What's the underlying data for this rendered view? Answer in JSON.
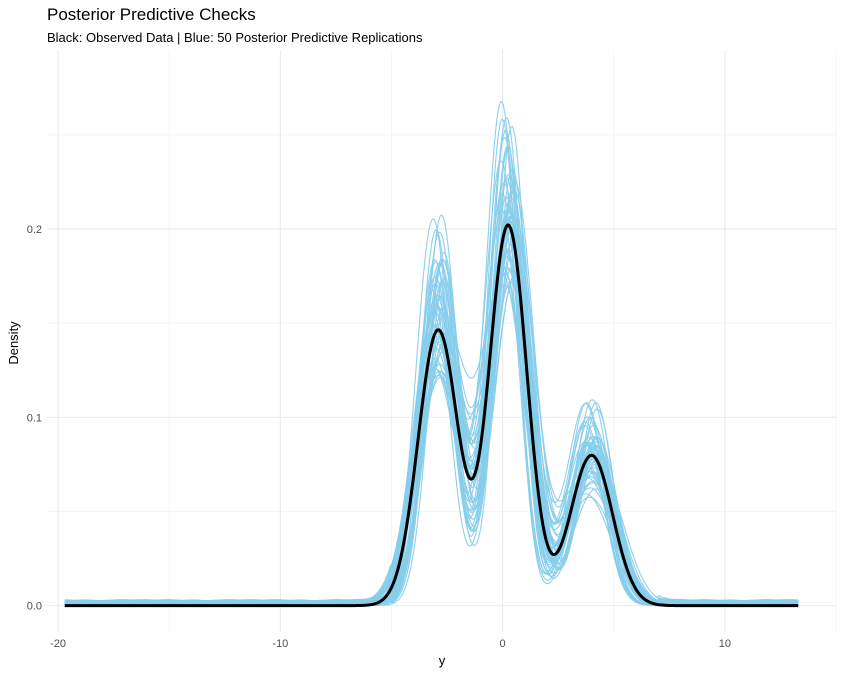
{
  "chart_data": {
    "type": "line",
    "title": "Posterior Predictive Checks",
    "subtitle": "Black: Observed Data | Blue: 50 Posterior Predictive Replications",
    "xlabel": "y",
    "ylabel": "Density",
    "xlim": [
      -20.5,
      15
    ],
    "ylim": [
      -0.014,
      0.295
    ],
    "x_ticks": [
      -20,
      -10,
      0,
      10
    ],
    "x_tick_labels": [
      "-20",
      "-10",
      "0",
      "10"
    ],
    "y_ticks": [
      0.0,
      0.1,
      0.2
    ],
    "y_tick_labels": [
      "0.0",
      "0.1",
      "0.2"
    ],
    "grid": true,
    "colors": {
      "observed": "#000000",
      "replications": "#87CEEB",
      "grid_major": "#EBEBEB",
      "grid_minor": "#F5F5F5"
    },
    "observed_components": [
      {
        "mu": -2.9,
        "sigma": 0.9,
        "weight": 0.33
      },
      {
        "mu": 0.25,
        "sigma": 0.85,
        "weight": 0.43
      },
      {
        "mu": 4.0,
        "sigma": 0.95,
        "weight": 0.19
      }
    ],
    "observed_range": [
      -19.7,
      13.3
    ],
    "replication_count": 50,
    "replication_peak_range": [
      0.145,
      0.285
    ]
  }
}
